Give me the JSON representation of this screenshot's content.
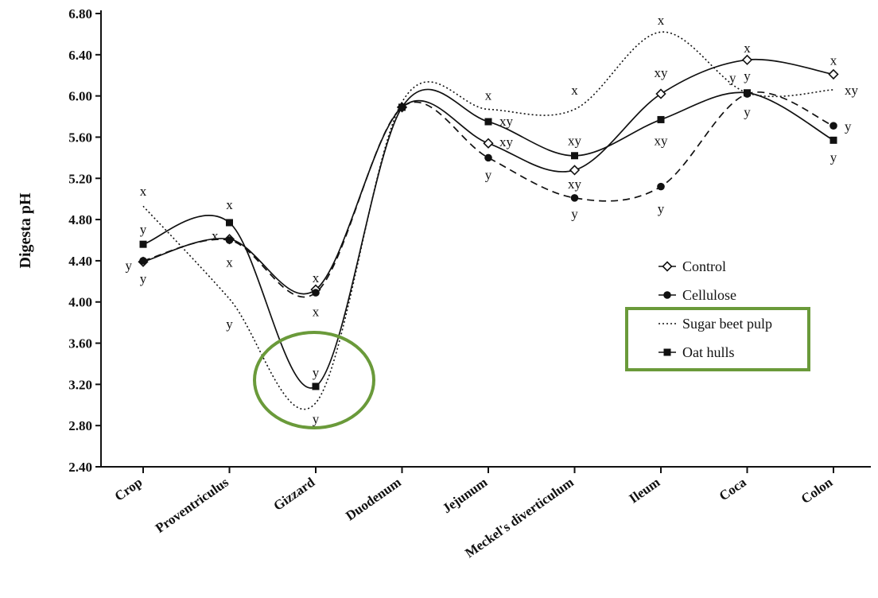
{
  "chart_data": {
    "type": "line",
    "ylabel": "Digesta pH",
    "xlabel": "",
    "ylim": [
      2.4,
      6.8
    ],
    "yticks": [
      "2.40",
      "2.80",
      "3.20",
      "3.60",
      "4.00",
      "4.40",
      "4.80",
      "5.20",
      "5.60",
      "6.00",
      "6.40",
      "6.80"
    ],
    "categories": [
      "Crop",
      "Proventriculus",
      "Gizzard",
      "Duodenum",
      "Jejunum",
      "Meckel's diverticulum",
      "Ileum",
      "Coca",
      "Colon"
    ],
    "series": [
      {
        "name": "Control",
        "marker": "open-diamond",
        "line": "solid",
        "values": [
          4.39,
          4.61,
          4.12,
          5.89,
          5.54,
          5.28,
          6.02,
          6.35,
          6.21
        ]
      },
      {
        "name": "Cellulose",
        "marker": "filled-circle",
        "line": "dashed",
        "values": [
          4.4,
          4.6,
          4.09,
          5.89,
          5.4,
          5.01,
          5.12,
          6.02,
          5.71
        ]
      },
      {
        "name": "Sugar beet pulp",
        "marker": "none",
        "line": "dotted",
        "values": [
          4.93,
          4.03,
          3.02,
          5.94,
          5.87,
          5.87,
          6.62,
          6.03,
          6.06
        ]
      },
      {
        "name": "Oat hulls",
        "marker": "filled-square",
        "line": "solid",
        "values": [
          4.56,
          4.77,
          3.18,
          5.89,
          5.75,
          5.42,
          5.77,
          6.03,
          5.57
        ]
      }
    ],
    "annotations": [
      {
        "category": "Crop",
        "y": 5.07,
        "text": "x"
      },
      {
        "category": "Crop",
        "y": 4.7,
        "text": "y"
      },
      {
        "category": "Crop",
        "y": 4.35,
        "text": "y",
        "side": "left"
      },
      {
        "category": "Crop",
        "y": 4.22,
        "text": "y"
      },
      {
        "category": "Proventriculus",
        "y": 4.94,
        "text": "x"
      },
      {
        "category": "Proventriculus",
        "y": 4.64,
        "text": "x",
        "side": "left"
      },
      {
        "category": "Proventriculus",
        "y": 4.38,
        "text": "x"
      },
      {
        "category": "Proventriculus",
        "y": 3.78,
        "text": "y"
      },
      {
        "category": "Gizzard",
        "y": 4.23,
        "text": "x"
      },
      {
        "category": "Gizzard",
        "y": 3.9,
        "text": "x"
      },
      {
        "category": "Gizzard",
        "y": 3.31,
        "text": "y"
      },
      {
        "category": "Gizzard",
        "y": 2.86,
        "text": "y"
      },
      {
        "category": "Jejunum",
        "y": 6.0,
        "text": "x"
      },
      {
        "category": "Jejunum",
        "y": 5.75,
        "text": "xy",
        "side": "right"
      },
      {
        "category": "Jejunum",
        "y": 5.55,
        "text": "xy",
        "side": "right"
      },
      {
        "category": "Jejunum",
        "y": 5.23,
        "text": "y"
      },
      {
        "category": "Meckel's diverticulum",
        "y": 6.05,
        "text": "x"
      },
      {
        "category": "Meckel's diverticulum",
        "y": 5.56,
        "text": "xy"
      },
      {
        "category": "Meckel's diverticulum",
        "y": 5.14,
        "text": "xy"
      },
      {
        "category": "Meckel's diverticulum",
        "y": 4.85,
        "text": "y"
      },
      {
        "category": "Ileum",
        "y": 6.73,
        "text": "x"
      },
      {
        "category": "Ileum",
        "y": 6.22,
        "text": "xy"
      },
      {
        "category": "Ileum",
        "y": 5.56,
        "text": "xy"
      },
      {
        "category": "Ileum",
        "y": 4.9,
        "text": "y"
      },
      {
        "category": "Coca",
        "y": 6.46,
        "text": "x"
      },
      {
        "category": "Coca",
        "y": 6.17,
        "text": "y",
        "side": "left"
      },
      {
        "category": "Coca",
        "y": 6.19,
        "text": "y"
      },
      {
        "category": "Coca",
        "y": 5.84,
        "text": "y"
      },
      {
        "category": "Colon",
        "y": 6.34,
        "text": "x"
      },
      {
        "category": "Colon",
        "y": 6.05,
        "text": "xy",
        "side": "right"
      },
      {
        "category": "Colon",
        "y": 5.7,
        "text": "y",
        "side": "right"
      },
      {
        "category": "Colon",
        "y": 5.4,
        "text": "y"
      }
    ],
    "legend": {
      "placement": "right-middle",
      "entries": [
        "Control",
        "Cellulose",
        "Sugar beet pulp",
        "Oat hulls"
      ]
    },
    "highlights": {
      "color": "#6a9a3a",
      "items": [
        "ellipse around Gizzard values",
        "box around Sugar beet pulp and Oat hulls legend entries"
      ]
    }
  }
}
